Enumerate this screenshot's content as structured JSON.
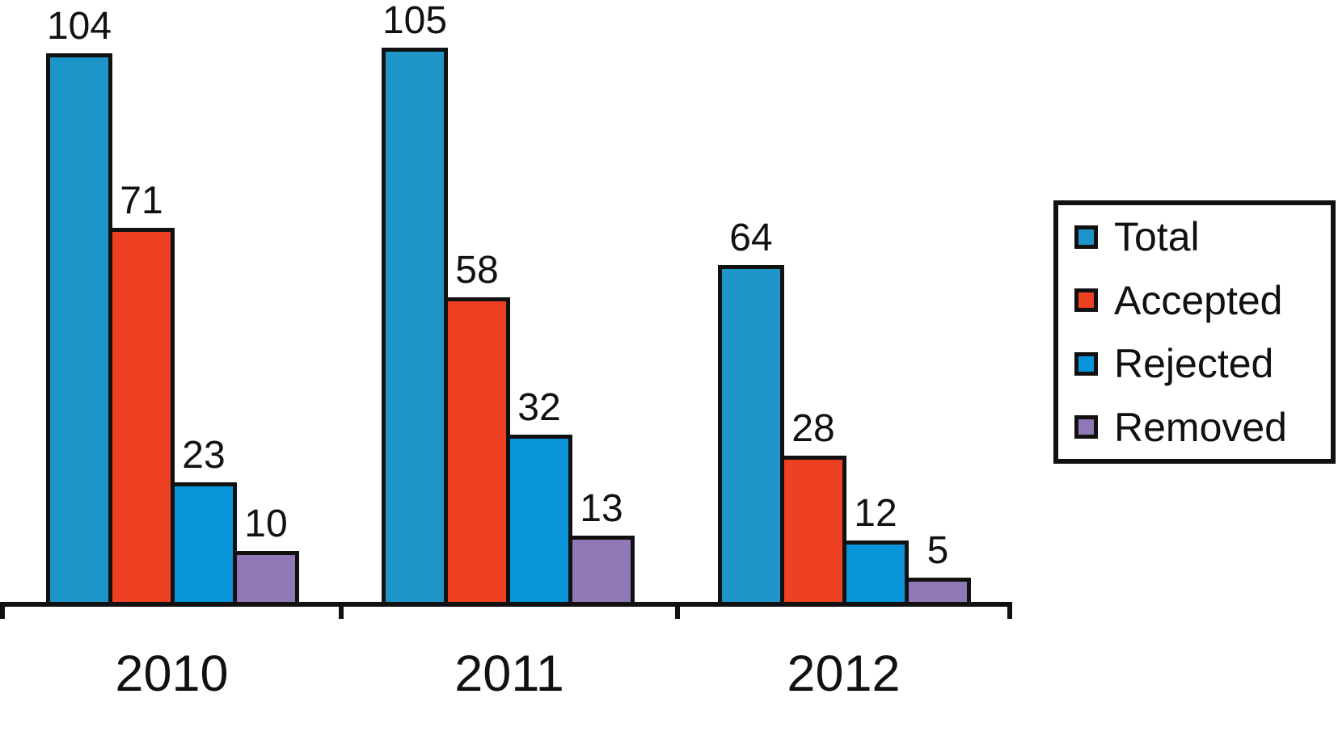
{
  "chart_data": {
    "type": "bar",
    "title": "",
    "xlabel": "",
    "ylabel": "",
    "categories": [
      "2010",
      "2011",
      "2012"
    ],
    "series": [
      {
        "name": "Total",
        "color": "#1e95c8",
        "values": [
          104,
          105,
          64
        ]
      },
      {
        "name": "Accepted",
        "color": "#ee4023",
        "values": [
          71,
          58,
          28
        ]
      },
      {
        "name": "Rejected",
        "color": "#0994d9",
        "values": [
          23,
          32,
          12
        ]
      },
      {
        "name": "Removed",
        "color": "#8f78b5",
        "values": [
          10,
          13,
          5
        ]
      }
    ],
    "ylim": [
      0,
      110
    ],
    "grid": false,
    "bar_value_labels_shown": true,
    "legend_position": "right",
    "outline_color": "#111111",
    "background_color": "#ffffff"
  }
}
